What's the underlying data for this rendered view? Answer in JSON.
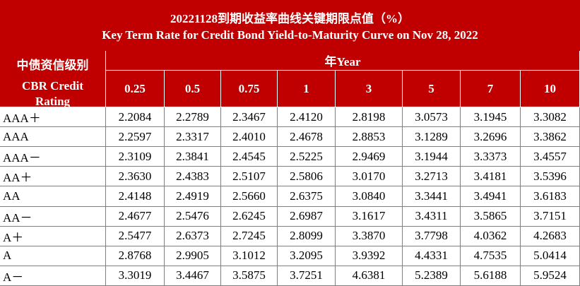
{
  "header": {
    "title_cn": "20221128到期收益率曲线关键期限点值（%）",
    "title_en": "Key Term Rate for Credit Bond Yield-to-Maturity Curve on Nov 28, 2022"
  },
  "table": {
    "rating_label_cn": "中债资信级别",
    "rating_label_en": "CBR Credit Rating",
    "term_label": "年Year",
    "columns": [
      "0.25",
      "0.5",
      "0.75",
      "1",
      "3",
      "5",
      "7",
      "10"
    ],
    "rows": [
      [
        "AAA＋",
        "2.2084",
        "2.2789",
        "2.3467",
        "2.4120",
        "2.8198",
        "3.0573",
        "3.1945",
        "3.3082"
      ],
      [
        "AAA",
        "2.2597",
        "2.3317",
        "2.4010",
        "2.4678",
        "2.8853",
        "3.1289",
        "3.2696",
        "3.3862"
      ],
      [
        "AAA－",
        "2.3109",
        "2.3841",
        "2.4545",
        "2.5225",
        "2.9469",
        "3.1944",
        "3.3373",
        "3.4557"
      ],
      [
        "AA＋",
        "2.3630",
        "2.4383",
        "2.5107",
        "2.5806",
        "3.0170",
        "3.2713",
        "3.4181",
        "3.5396"
      ],
      [
        "AA",
        "2.4148",
        "2.4919",
        "2.5660",
        "2.6375",
        "3.0840",
        "3.3441",
        "3.4941",
        "3.6183"
      ],
      [
        "AA－",
        "2.4677",
        "2.5476",
        "2.6245",
        "2.6987",
        "3.1617",
        "3.4311",
        "3.5865",
        "3.7151"
      ],
      [
        "A＋",
        "2.5477",
        "2.6373",
        "2.7245",
        "2.8099",
        "3.3870",
        "3.7798",
        "4.0362",
        "4.2683"
      ],
      [
        "A",
        "2.8768",
        "2.9905",
        "3.1012",
        "3.2095",
        "3.9392",
        "4.4331",
        "4.7535",
        "5.0414"
      ],
      [
        "A－",
        "3.3019",
        "3.4467",
        "3.5875",
        "3.7251",
        "4.6381",
        "5.2389",
        "5.6188",
        "5.9524"
      ]
    ]
  }
}
